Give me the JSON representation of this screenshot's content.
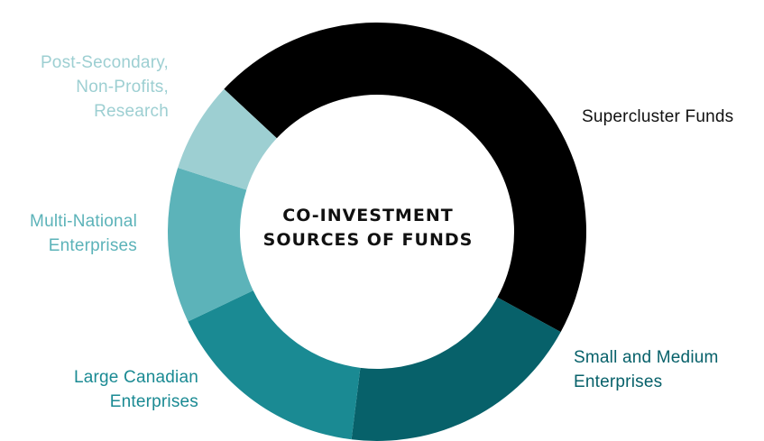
{
  "chart_data": {
    "type": "pie",
    "title_lines": [
      "CO-INVESTMENT",
      "SOURCES OF FUNDS"
    ],
    "slices": [
      {
        "label_lines": [
          "Supercluster Funds"
        ],
        "value": 46,
        "color": "#000000",
        "label_color": "#111111"
      },
      {
        "label_lines": [
          "Small and Medium",
          "Enterprises"
        ],
        "value": 19,
        "color": "#07616a",
        "label_color": "#07616a"
      },
      {
        "label_lines": [
          "Large Canadian",
          "Enterprises"
        ],
        "value": 16,
        "color": "#1a8a93",
        "label_color": "#1a8a93"
      },
      {
        "label_lines": [
          "Multi-National",
          "Enterprises"
        ],
        "value": 12,
        "color": "#5cb3b9",
        "label_color": "#5cb3b9"
      },
      {
        "label_lines": [
          "Post-Secondary,",
          "Non-Profits,",
          "Research"
        ],
        "value": 7,
        "color": "#9dcfd2",
        "label_color": "#9dcfd2"
      }
    ]
  }
}
